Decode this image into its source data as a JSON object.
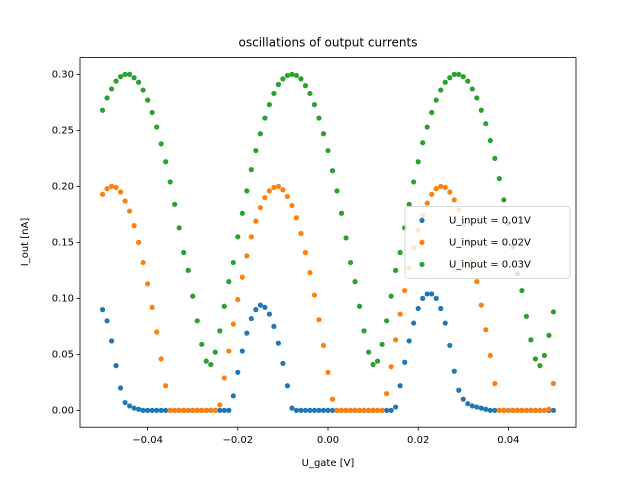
{
  "chart_data": {
    "type": "scatter",
    "title": "oscillations of output currents",
    "x_label": "U_gate [V]",
    "y_label": "I_out [nA]",
    "x": [
      -0.05,
      -0.049,
      -0.048,
      -0.047,
      -0.046,
      -0.045,
      -0.044,
      -0.043,
      -0.042,
      -0.041,
      -0.04,
      -0.039,
      -0.038,
      -0.037,
      -0.036,
      -0.035,
      -0.034,
      -0.033,
      -0.032,
      -0.031,
      -0.03,
      -0.029,
      -0.028,
      -0.027,
      -0.026,
      -0.025,
      -0.024,
      -0.023,
      -0.022,
      -0.021,
      -0.02,
      -0.019,
      -0.018,
      -0.017,
      -0.016,
      -0.015,
      -0.014,
      -0.013,
      -0.012,
      -0.011,
      -0.01,
      -0.009,
      -0.008,
      -0.007,
      -0.006,
      -0.005,
      -0.004,
      -0.003,
      -0.002,
      -0.001,
      0,
      0.001,
      0.002,
      0.003,
      0.004,
      0.005,
      0.006,
      0.007,
      0.008,
      0.009,
      0.01,
      0.011,
      0.012,
      0.013,
      0.014,
      0.015,
      0.016,
      0.017,
      0.018,
      0.019,
      0.02,
      0.021,
      0.022,
      0.023,
      0.024,
      0.025,
      0.026,
      0.027,
      0.028,
      0.029,
      0.03,
      0.031,
      0.032,
      0.033,
      0.034,
      0.035,
      0.036,
      0.037,
      0.038,
      0.039,
      0.04,
      0.041,
      0.042,
      0.043,
      0.044,
      0.045,
      0.046,
      0.047,
      0.048,
      0.049,
      0.05
    ],
    "series": [
      {
        "name": "U_input = 0.01V",
        "color": "#1f77b4",
        "values": [
          0.09,
          0.08,
          0.062,
          0.04,
          0.02,
          0.007,
          0.004,
          0.002,
          0.001,
          0,
          0,
          0,
          0,
          0,
          0,
          0,
          0,
          0,
          0,
          0,
          0,
          0,
          0,
          0,
          0,
          0,
          0,
          0,
          0,
          0.013,
          0.034,
          0.053,
          0.069,
          0.082,
          0.09,
          0.094,
          0.092,
          0.086,
          0.075,
          0.06,
          0.042,
          0.022,
          0.002,
          0,
          0,
          0,
          0,
          0,
          0,
          0,
          0,
          0,
          0,
          0,
          0,
          0,
          0,
          0,
          0,
          0,
          0,
          0,
          0,
          0,
          0,
          0.003,
          0.022,
          0.043,
          0.062,
          0.078,
          0.091,
          0.1,
          0.104,
          0.104,
          0.1,
          0.091,
          0.078,
          0.058,
          0.035,
          0.018,
          0.01,
          0.006,
          0.004,
          0.003,
          0.002,
          0.001,
          0,
          0,
          0,
          0,
          0,
          0,
          0,
          0,
          0,
          0,
          0,
          0,
          0,
          0,
          0
        ]
      },
      {
        "name": "U_input = 0.02V",
        "color": "#ff7f0e",
        "values": [
          0.193,
          0.198,
          0.2,
          0.199,
          0.195,
          0.187,
          0.178,
          0.165,
          0.15,
          0.132,
          0.113,
          0.092,
          0.07,
          0.046,
          0.022,
          0,
          0,
          0,
          0,
          0,
          0,
          0,
          0,
          0,
          0,
          0,
          0.005,
          0.029,
          0.053,
          0.077,
          0.099,
          0.119,
          0.138,
          0.155,
          0.169,
          0.181,
          0.19,
          0.196,
          0.199,
          0.2,
          0.197,
          0.191,
          0.183,
          0.172,
          0.158,
          0.141,
          0.123,
          0.103,
          0.081,
          0.058,
          0.034,
          0.01,
          0,
          0,
          0,
          0,
          0,
          0,
          0,
          0,
          0,
          0,
          0,
          0.015,
          0.039,
          0.063,
          0.086,
          0.107,
          0.127,
          0.145,
          0.161,
          0.174,
          0.185,
          0.193,
          0.198,
          0.2,
          0.199,
          0.195,
          0.188,
          0.179,
          0.166,
          0.151,
          0.134,
          0.115,
          0.094,
          0.072,
          0.049,
          0.024,
          0,
          0,
          0,
          0,
          0,
          0,
          0,
          0,
          0,
          0,
          0,
          0.001,
          0.024
        ]
      },
      {
        "name": "U_input = 0.03V",
        "color": "#2ca02c",
        "values": [
          0.268,
          0.279,
          0.287,
          0.294,
          0.298,
          0.3,
          0.3,
          0.297,
          0.293,
          0.286,
          0.277,
          0.266,
          0.253,
          0.238,
          0.222,
          0.204,
          0.184,
          0.163,
          0.141,
          0.125,
          0.102,
          0.08,
          0.059,
          0.044,
          0.041,
          0.052,
          0.071,
          0.093,
          0.115,
          0.132,
          0.155,
          0.176,
          0.196,
          0.215,
          0.232,
          0.247,
          0.261,
          0.273,
          0.283,
          0.291,
          0.296,
          0.299,
          0.3,
          0.299,
          0.296,
          0.29,
          0.283,
          0.273,
          0.261,
          0.247,
          0.232,
          0.214,
          0.196,
          0.176,
          0.154,
          0.132,
          0.115,
          0.093,
          0.071,
          0.052,
          0.041,
          0.044,
          0.059,
          0.08,
          0.102,
          0.125,
          0.141,
          0.163,
          0.184,
          0.204,
          0.222,
          0.239,
          0.253,
          0.266,
          0.277,
          0.286,
          0.293,
          0.297,
          0.3,
          0.3,
          0.298,
          0.294,
          0.287,
          0.279,
          0.268,
          0.256,
          0.241,
          0.225,
          0.207,
          0.188,
          0.167,
          0.146,
          0.122,
          0.107,
          0.084,
          0.063,
          0.046,
          0.04,
          0.049,
          0.067,
          0.088
        ]
      }
    ],
    "xlim": [
      -0.055,
      0.055
    ],
    "ylim": [
      -0.015,
      0.315
    ],
    "xticks": [
      {
        "value": -0.04,
        "label": "−0.04"
      },
      {
        "value": -0.02,
        "label": "−0.02"
      },
      {
        "value": 0,
        "label": "0.00"
      },
      {
        "value": 0.02,
        "label": "0.02"
      },
      {
        "value": 0.04,
        "label": "0.04"
      }
    ],
    "yticks": [
      {
        "value": 0,
        "label": "0.00"
      },
      {
        "value": 0.05,
        "label": "0.05"
      },
      {
        "value": 0.1,
        "label": "0.10"
      },
      {
        "value": 0.15,
        "label": "0.15"
      },
      {
        "value": 0.2,
        "label": "0.20"
      },
      {
        "value": 0.25,
        "label": "0.25"
      },
      {
        "value": 0.3,
        "label": "0.30"
      }
    ],
    "grid": false,
    "legend": "center right"
  }
}
